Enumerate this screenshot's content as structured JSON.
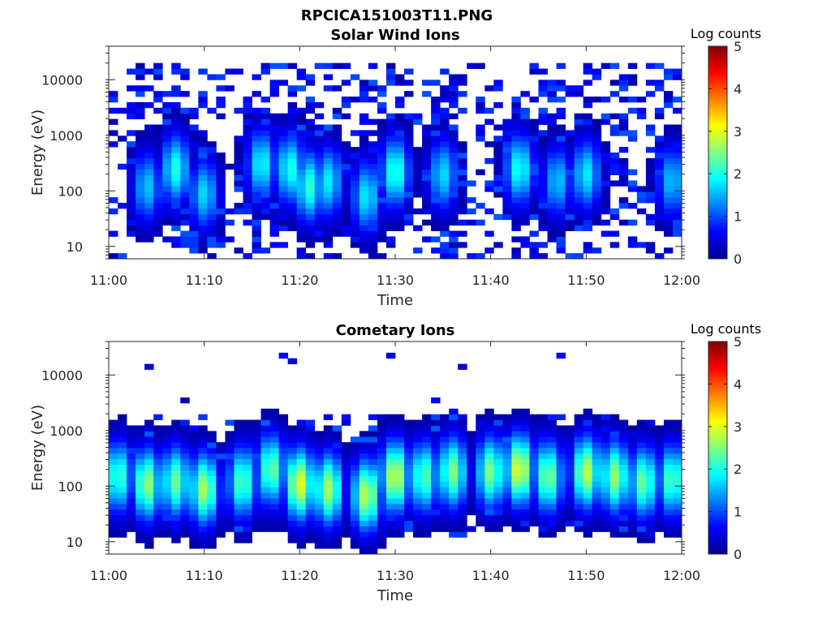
{
  "figure_title": "RPCICA151003T11.PNG",
  "colormap": [
    "#00008f",
    "#0000ff",
    "#0080ff",
    "#00ffff",
    "#80ff80",
    "#ffff00",
    "#ff8000",
    "#ff0000",
    "#800000"
  ],
  "chart_data": [
    {
      "type": "heatmap",
      "title": "Solar Wind Ions",
      "xlabel": "Time",
      "ylabel": "Energy (eV)",
      "x_ticks": [
        "11:00",
        "11:10",
        "11:20",
        "11:30",
        "11:40",
        "11:50",
        "12:00"
      ],
      "xlim": [
        "11:00",
        "12:00"
      ],
      "y_scale": "log",
      "y_ticks": [
        10,
        100,
        1000,
        10000
      ],
      "y_tick_labels": [
        "10",
        "100",
        "1000",
        "10000"
      ],
      "ylim": [
        6,
        40000
      ],
      "colorbar": {
        "label": "Log counts",
        "range": [
          0,
          5
        ],
        "ticks": [
          "0",
          "1",
          "2",
          "3",
          "4",
          "5"
        ]
      },
      "dominant_log_counts": 1,
      "peak_log_counts": 2,
      "description_energy_band_peak_eV": 150,
      "bursts": [
        {
          "time": "11:04",
          "energy_eV": 120,
          "log_counts": 1.6
        },
        {
          "time": "11:07",
          "energy_eV": 250,
          "log_counts": 2.0
        },
        {
          "time": "11:10",
          "energy_eV": 90,
          "log_counts": 1.7
        },
        {
          "time": "11:16",
          "energy_eV": 300,
          "log_counts": 1.9
        },
        {
          "time": "11:19",
          "energy_eV": 250,
          "log_counts": 2.0
        },
        {
          "time": "11:21",
          "energy_eV": 120,
          "log_counts": 2.1
        },
        {
          "time": "11:23",
          "energy_eV": 150,
          "log_counts": 1.8
        },
        {
          "time": "11:27",
          "energy_eV": 80,
          "log_counts": 1.8
        },
        {
          "time": "11:30",
          "energy_eV": 220,
          "log_counts": 2.1
        },
        {
          "time": "11:35",
          "energy_eV": 200,
          "log_counts": 1.7
        },
        {
          "time": "11:43",
          "energy_eV": 250,
          "log_counts": 2.0
        },
        {
          "time": "11:47",
          "energy_eV": 150,
          "log_counts": 1.6
        },
        {
          "time": "11:50",
          "energy_eV": 200,
          "log_counts": 1.8
        },
        {
          "time": "11:59",
          "energy_eV": 150,
          "log_counts": 1.6
        }
      ]
    },
    {
      "type": "heatmap",
      "title": "Cometary Ions",
      "xlabel": "Time",
      "ylabel": "Energy (eV)",
      "x_ticks": [
        "11:00",
        "11:10",
        "11:20",
        "11:30",
        "11:40",
        "11:50",
        "12:00"
      ],
      "xlim": [
        "11:00",
        "12:00"
      ],
      "y_scale": "log",
      "y_ticks": [
        10,
        100,
        1000,
        10000
      ],
      "y_tick_labels": [
        "10",
        "100",
        "1000",
        "10000"
      ],
      "ylim": [
        6,
        40000
      ],
      "colorbar": {
        "label": "Log counts",
        "range": [
          0,
          5
        ],
        "ticks": [
          "0",
          "1",
          "2",
          "3",
          "4",
          "5"
        ]
      },
      "dominant_log_counts": 2,
      "peak_log_counts": 3,
      "bursts": [
        {
          "time": "11:01",
          "energy_eV": 150,
          "log_counts": 2.2
        },
        {
          "time": "11:04",
          "energy_eV": 110,
          "log_counts": 2.6
        },
        {
          "time": "11:07",
          "energy_eV": 120,
          "log_counts": 2.4
        },
        {
          "time": "11:10",
          "energy_eV": 90,
          "log_counts": 2.7
        },
        {
          "time": "11:14",
          "energy_eV": 120,
          "log_counts": 2.3
        },
        {
          "time": "11:17",
          "energy_eV": 200,
          "log_counts": 2.4
        },
        {
          "time": "11:20",
          "energy_eV": 110,
          "log_counts": 3.0
        },
        {
          "time": "11:23",
          "energy_eV": 90,
          "log_counts": 2.7
        },
        {
          "time": "11:27",
          "energy_eV": 70,
          "log_counts": 2.8
        },
        {
          "time": "11:30",
          "energy_eV": 150,
          "log_counts": 2.9
        },
        {
          "time": "11:33",
          "energy_eV": 150,
          "log_counts": 2.3
        },
        {
          "time": "11:36",
          "energy_eV": 180,
          "log_counts": 2.5
        },
        {
          "time": "11:40",
          "energy_eV": 180,
          "log_counts": 2.5
        },
        {
          "time": "11:43",
          "energy_eV": 200,
          "log_counts": 3.0
        },
        {
          "time": "11:46",
          "energy_eV": 150,
          "log_counts": 2.5
        },
        {
          "time": "11:50",
          "energy_eV": 180,
          "log_counts": 2.8
        },
        {
          "time": "11:53",
          "energy_eV": 150,
          "log_counts": 2.6
        },
        {
          "time": "11:56",
          "energy_eV": 120,
          "log_counts": 2.4
        },
        {
          "time": "11:59",
          "energy_eV": 130,
          "log_counts": 2.3
        }
      ]
    }
  ]
}
